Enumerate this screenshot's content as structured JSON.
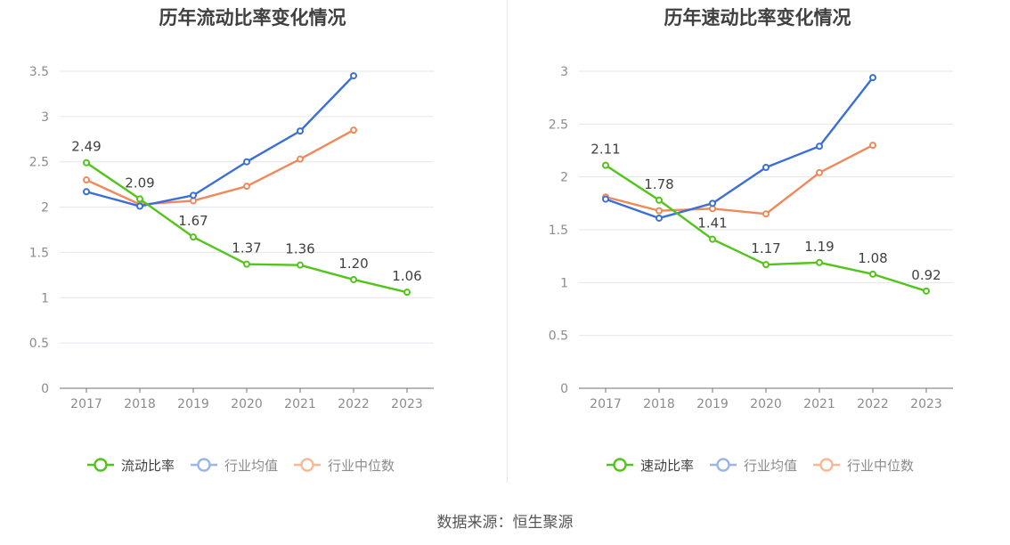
{
  "source_text": "数据来源：恒生聚源",
  "chart_data": [
    {
      "type": "line",
      "title": "历年流动比率变化情况",
      "categories": [
        "2017",
        "2018",
        "2019",
        "2020",
        "2021",
        "2022",
        "2023"
      ],
      "ylim": [
        0,
        3.5
      ],
      "yticks": [
        "0",
        "0.5",
        "1",
        "1.5",
        "2",
        "2.5",
        "3",
        "3.5"
      ],
      "grid": true,
      "legend_position": "bottom-center",
      "series": [
        {
          "name": "流动比率",
          "color": "#52c41a",
          "values": [
            2.49,
            2.09,
            1.67,
            1.37,
            1.36,
            1.2,
            1.06
          ],
          "labels": [
            "2.49",
            "2.09",
            "1.67",
            "1.37",
            "1.36",
            "1.20",
            "1.06"
          ]
        },
        {
          "name": "行业均值",
          "color": "#3a6fd8",
          "values": [
            2.17,
            2.01,
            2.13,
            2.5,
            2.84,
            3.45,
            null
          ]
        },
        {
          "name": "行业中位数",
          "color": "#f0895a",
          "values": [
            2.3,
            2.03,
            2.07,
            2.23,
            2.53,
            2.85,
            null
          ]
        }
      ]
    },
    {
      "type": "line",
      "title": "历年速动比率变化情况",
      "categories": [
        "2017",
        "2018",
        "2019",
        "2020",
        "2021",
        "2022",
        "2023"
      ],
      "ylim": [
        0,
        3
      ],
      "yticks": [
        "0",
        "0.5",
        "1",
        "1.5",
        "2",
        "2.5",
        "3"
      ],
      "grid": true,
      "legend_position": "bottom-center",
      "series": [
        {
          "name": "速动比率",
          "color": "#52c41a",
          "values": [
            2.11,
            1.78,
            1.41,
            1.17,
            1.19,
            1.08,
            0.92
          ],
          "labels": [
            "2.11",
            "1.78",
            "1.41",
            "1.17",
            "1.19",
            "1.08",
            "0.92"
          ]
        },
        {
          "name": "行业均值",
          "color": "#3a6fd8",
          "values": [
            1.79,
            1.61,
            1.75,
            2.09,
            2.29,
            2.94,
            null
          ]
        },
        {
          "name": "行业中位数",
          "color": "#f0895a",
          "values": [
            1.81,
            1.68,
            1.7,
            1.65,
            2.04,
            2.3,
            null
          ]
        }
      ]
    }
  ]
}
